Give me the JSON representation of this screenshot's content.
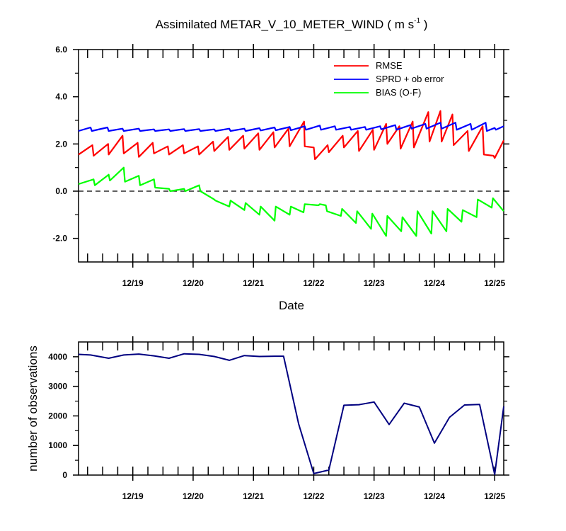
{
  "chart_data": [
    {
      "type": "line",
      "title": "Assimilated METAR_V_10_METER_WIND",
      "title_units": "( m s",
      "title_units_exp": "-1",
      "title_units_close": " )",
      "xlabel": "Date",
      "ylabel": "",
      "xlim": [
        18.1,
        25.15
      ],
      "ylim": [
        -3,
        6
      ],
      "x_ticks": [
        19,
        20,
        21,
        22,
        23,
        24,
        25
      ],
      "x_tick_labels": [
        "12/19",
        "12/20",
        "12/21",
        "12/22",
        "12/23",
        "12/24",
        "12/25"
      ],
      "y_ticks": [
        -2,
        0,
        2,
        4,
        6
      ],
      "y_tick_labels": [
        "-2.0",
        "0.0",
        "2.0",
        "4.0",
        "6.0"
      ],
      "zero_line": "dashed",
      "legend_position": "top-right",
      "series": [
        {
          "name": "RMSE",
          "color": "#ff0000",
          "x": [
            18.1,
            18.33,
            18.35,
            18.59,
            18.6,
            18.83,
            18.85,
            19.08,
            19.1,
            19.33,
            19.35,
            19.58,
            19.6,
            19.83,
            19.85,
            20.08,
            20.1,
            20.33,
            20.35,
            20.58,
            20.6,
            20.83,
            20.85,
            21.08,
            21.1,
            21.33,
            21.35,
            21.58,
            21.6,
            21.84,
            21.85,
            22.0,
            22.02,
            22.23,
            22.25,
            22.48,
            22.5,
            22.73,
            22.75,
            22.98,
            23.0,
            23.2,
            23.22,
            23.42,
            23.44,
            23.64,
            23.66,
            23.9,
            23.92,
            24.1,
            24.12,
            24.3,
            24.32,
            24.55,
            24.57,
            24.8,
            24.82,
            24.98,
            25.0,
            25.15
          ],
          "y": [
            1.55,
            1.95,
            1.5,
            2.0,
            1.55,
            2.35,
            1.6,
            2.05,
            1.45,
            2.05,
            1.6,
            1.9,
            1.55,
            1.95,
            1.6,
            1.9,
            1.55,
            2.1,
            1.7,
            2.3,
            1.75,
            2.35,
            1.8,
            2.45,
            1.75,
            2.5,
            1.85,
            2.65,
            1.9,
            2.95,
            1.9,
            1.85,
            1.35,
            1.95,
            1.65,
            2.35,
            1.85,
            2.55,
            1.7,
            2.6,
            1.75,
            2.85,
            2.0,
            2.75,
            1.8,
            2.95,
            1.85,
            3.35,
            2.1,
            3.4,
            2.1,
            3.25,
            1.95,
            2.55,
            1.7,
            2.75,
            1.55,
            1.5,
            1.4,
            2.15
          ]
        },
        {
          "name": "SPRD + ob error",
          "color": "#0000ff",
          "x": [
            18.1,
            18.3,
            18.32,
            18.58,
            18.6,
            18.83,
            18.85,
            19.1,
            19.12,
            19.35,
            19.37,
            19.6,
            19.62,
            19.85,
            19.87,
            20.1,
            20.12,
            20.35,
            20.37,
            20.6,
            20.62,
            20.85,
            20.87,
            21.1,
            21.12,
            21.35,
            21.37,
            21.6,
            21.62,
            21.85,
            21.87,
            22.1,
            22.12,
            22.35,
            22.37,
            22.6,
            22.62,
            22.85,
            22.87,
            23.1,
            23.12,
            23.35,
            23.37,
            23.6,
            23.62,
            23.85,
            23.87,
            24.1,
            24.12,
            24.35,
            24.37,
            24.6,
            24.62,
            24.85,
            24.87,
            25.0,
            25.02,
            25.15
          ],
          "y": [
            2.55,
            2.7,
            2.55,
            2.7,
            2.55,
            2.65,
            2.55,
            2.65,
            2.55,
            2.62,
            2.55,
            2.62,
            2.55,
            2.63,
            2.55,
            2.63,
            2.55,
            2.62,
            2.55,
            2.65,
            2.55,
            2.65,
            2.55,
            2.67,
            2.57,
            2.7,
            2.58,
            2.72,
            2.58,
            2.75,
            2.6,
            2.78,
            2.6,
            2.75,
            2.6,
            2.72,
            2.6,
            2.72,
            2.6,
            2.75,
            2.62,
            2.8,
            2.6,
            2.8,
            2.65,
            2.85,
            2.65,
            2.9,
            2.65,
            2.9,
            2.6,
            2.85,
            2.6,
            2.9,
            2.55,
            2.68,
            2.6,
            2.75
          ]
        },
        {
          "name": "BIAS (O-F)",
          "color": "#00ff00",
          "x": [
            18.1,
            18.35,
            18.37,
            18.6,
            18.62,
            18.85,
            18.87,
            19.1,
            19.12,
            19.35,
            19.37,
            19.6,
            19.62,
            19.85,
            19.87,
            20.1,
            20.12,
            20.35,
            20.37,
            20.6,
            20.62,
            20.85,
            20.87,
            21.1,
            21.12,
            21.35,
            21.37,
            21.6,
            21.62,
            21.83,
            21.85,
            22.08,
            22.1,
            22.2,
            22.22,
            22.45,
            22.47,
            22.7,
            22.72,
            22.95,
            22.97,
            23.2,
            23.22,
            23.45,
            23.47,
            23.7,
            23.72,
            23.95,
            23.97,
            24.2,
            24.22,
            24.45,
            24.47,
            24.7,
            24.72,
            24.95,
            24.97,
            25.15
          ],
          "y": [
            0.3,
            0.5,
            0.25,
            0.7,
            0.45,
            1.0,
            0.4,
            0.65,
            0.25,
            0.5,
            0.15,
            0.1,
            0.0,
            0.1,
            0.0,
            0.25,
            0.0,
            -0.35,
            -0.4,
            -0.65,
            -0.4,
            -0.8,
            -0.5,
            -1.0,
            -0.65,
            -1.25,
            -0.65,
            -1.0,
            -0.65,
            -0.9,
            -0.55,
            -0.6,
            -0.55,
            -0.6,
            -0.85,
            -1.05,
            -0.75,
            -1.35,
            -0.85,
            -1.6,
            -0.95,
            -1.9,
            -1.05,
            -1.7,
            -1.1,
            -1.9,
            -0.85,
            -1.8,
            -0.85,
            -1.7,
            -0.75,
            -1.3,
            -0.8,
            -1.1,
            -0.35,
            -0.7,
            -0.3,
            -0.85
          ]
        }
      ]
    },
    {
      "type": "line",
      "title": "",
      "xlabel": "",
      "ylabel": "number of observations",
      "xlim": [
        18.1,
        25.15
      ],
      "ylim": [
        0,
        4500
      ],
      "x_ticks": [
        19,
        20,
        21,
        22,
        23,
        24,
        25
      ],
      "x_tick_labels": [
        "12/19",
        "12/20",
        "12/21",
        "12/22",
        "12/23",
        "12/24",
        "12/25"
      ],
      "y_ticks": [
        0,
        1000,
        2000,
        3000,
        4000
      ],
      "y_tick_labels": [
        "0",
        "1000",
        "2000",
        "3000",
        "4000"
      ],
      "series": [
        {
          "name": "number of observations",
          "color": "#000080",
          "x": [
            18.1,
            18.3,
            18.6,
            18.85,
            19.1,
            19.35,
            19.6,
            19.85,
            20.1,
            20.35,
            20.6,
            20.85,
            21.1,
            21.35,
            21.5,
            21.75,
            22.0,
            22.25,
            22.5,
            22.75,
            23.0,
            23.25,
            23.5,
            23.75,
            24.0,
            24.25,
            24.5,
            24.75,
            25.0,
            25.15
          ],
          "y": [
            4080,
            4060,
            3950,
            4060,
            4090,
            4030,
            3950,
            4100,
            4080,
            4010,
            3880,
            4040,
            4010,
            4020,
            4020,
            1720,
            50,
            170,
            2360,
            2380,
            2470,
            1710,
            2430,
            2300,
            1080,
            1950,
            2370,
            2390,
            20,
            2320
          ]
        }
      ]
    }
  ]
}
